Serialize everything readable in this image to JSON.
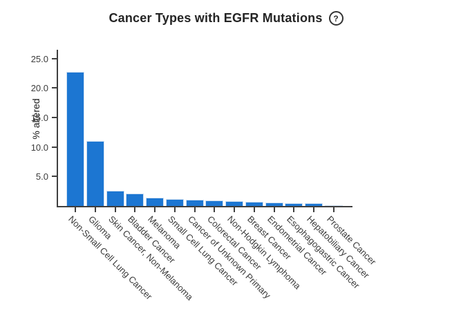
{
  "header": {
    "title": "Cancer Types with EGFR Mutations",
    "help_glyph": "?"
  },
  "chart_data": {
    "type": "bar",
    "title": "Cancer Types with EGFR Mutations",
    "xlabel": "",
    "ylabel": "% altered",
    "ylim": [
      0,
      26.5
    ],
    "grid": false,
    "legend": null,
    "bar_color": "#1c76d2",
    "axis_color": "#3f3f3f",
    "yticks": [
      5,
      10,
      15,
      20,
      25
    ],
    "ytick_labels": [
      "5.0",
      "10.0",
      "15.0",
      "20.0",
      "25.0"
    ],
    "categories": [
      "Non-Small Cell Lung Cancer",
      "Glioma",
      "Skin Cancer, Non-Melanoma",
      "Bladder Cancer",
      "Melanoma",
      "Small Cell Lung Cancer",
      "Cancer of Unknown Primary",
      "Colorectal Cancer",
      "Non-Hodgkin Lymphoma",
      "Breast Cancer",
      "Endometrial Cancer",
      "Esophagogastric Cancer",
      "Hepatobiliary Cancer",
      "Prostate Cancer"
    ],
    "values": [
      22.7,
      11.0,
      2.6,
      2.1,
      1.4,
      1.2,
      1.1,
      0.9,
      0.8,
      0.75,
      0.6,
      0.5,
      0.45,
      0.15
    ]
  }
}
